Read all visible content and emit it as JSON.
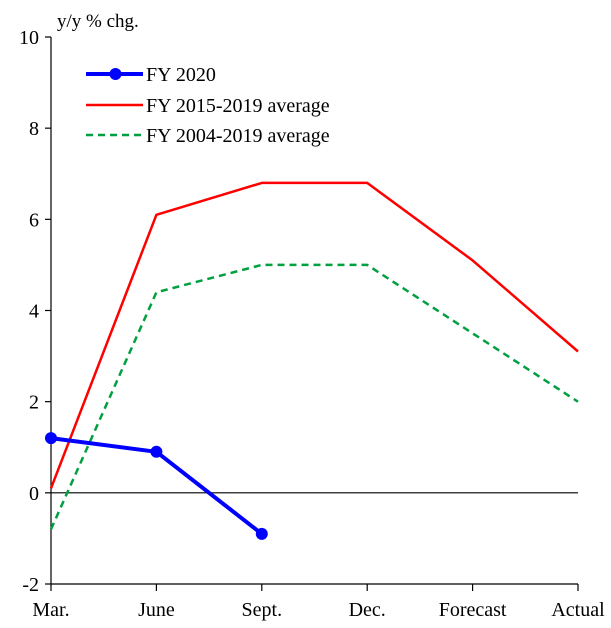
{
  "chart_data": {
    "type": "line",
    "ylabel": "y/y % chg.",
    "categories": [
      "Mar.",
      "June",
      "Sept.",
      "Dec.",
      "Forecast",
      "Actual"
    ],
    "ylim": [
      -2,
      10
    ],
    "yticks": [
      -2,
      0,
      2,
      4,
      6,
      8,
      10
    ],
    "grid": false,
    "legend_position": "top-left",
    "series": [
      {
        "name": "FY 2020",
        "color": "#0000FF",
        "style": "solid-markers",
        "values": [
          1.2,
          0.9,
          -0.9,
          null,
          null,
          null
        ]
      },
      {
        "name": "FY 2015-2019 average",
        "color": "#FF0000",
        "style": "solid",
        "values": [
          0.1,
          6.1,
          6.8,
          6.8,
          5.1,
          3.1
        ]
      },
      {
        "name": "FY 2004-2019 average",
        "color": "#00A040",
        "style": "dashed",
        "values": [
          -0.8,
          4.4,
          5.0,
          5.0,
          3.5,
          2.0
        ]
      }
    ]
  }
}
